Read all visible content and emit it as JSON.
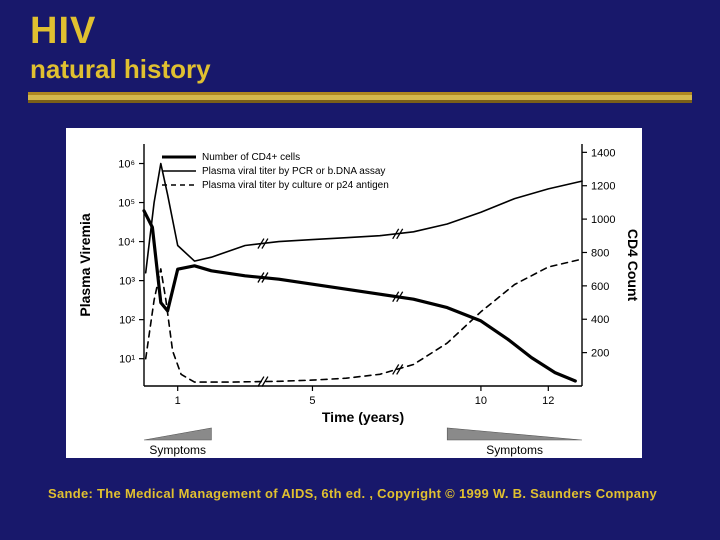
{
  "slide": {
    "background_color": "#18186b",
    "accent_color": "#e0c030",
    "title": "HIV",
    "subtitle": "natural history",
    "title_fontsize": 38,
    "subtitle_fontsize": 26,
    "underline_colors": [
      "#b08820",
      "#d4b84c",
      "#7a5f18"
    ],
    "citation": "Sande: The Medical Management of AIDS, 6th ed. , Copyright © 1999 W. B. Saunders Company",
    "citation_fontsize": 13
  },
  "chart": {
    "type": "line",
    "background_color": "#ffffff",
    "ink_color": "#000000",
    "font_family": "Arial",
    "axis_fontsize": 12,
    "tick_fontsize": 11,
    "legend_fontsize": 10,
    "legend": [
      {
        "label": "Number of CD4+ cells",
        "style": "solid-thick"
      },
      {
        "label": "Plasma viral titer by PCR or b.DNA assay",
        "style": "solid-thin"
      },
      {
        "label": "Plasma viral titer by culture or p24 antigen",
        "style": "dashed"
      }
    ],
    "x_axis": {
      "label": "Time (years)",
      "ticks": [
        1,
        5,
        10,
        12
      ],
      "range": [
        0,
        13
      ]
    },
    "y_left": {
      "label": "Plasma Viremia",
      "scale": "log",
      "ticks": [
        10,
        100,
        1000,
        10000,
        100000,
        1000000
      ],
      "tick_labels": [
        "10¹",
        "10²",
        "10³",
        "10⁴",
        "10⁵",
        "10⁶"
      ],
      "range_exp": [
        0.3,
        6.5
      ]
    },
    "y_right": {
      "label": "CD4 Count",
      "scale": "linear",
      "ticks": [
        200,
        400,
        600,
        800,
        1000,
        1200,
        1400
      ],
      "range": [
        0,
        1450
      ]
    },
    "break_marks_x": [
      3.5,
      7.5
    ],
    "series": {
      "cd4": {
        "axis": "right",
        "stroke": "#000000",
        "stroke_width": 3.2,
        "dash": "none",
        "points": [
          [
            0.0,
            1050
          ],
          [
            0.25,
            950
          ],
          [
            0.5,
            500
          ],
          [
            0.7,
            450
          ],
          [
            1.0,
            700
          ],
          [
            1.5,
            720
          ],
          [
            2.0,
            690
          ],
          [
            3.0,
            660
          ],
          [
            4.0,
            640
          ],
          [
            5.0,
            610
          ],
          [
            6.0,
            580
          ],
          [
            7.0,
            550
          ],
          [
            8.0,
            520
          ],
          [
            9.0,
            470
          ],
          [
            10.0,
            390
          ],
          [
            10.8,
            280
          ],
          [
            11.5,
            170
          ],
          [
            12.2,
            80
          ],
          [
            12.8,
            30
          ]
        ]
      },
      "pcr": {
        "axis": "left_log",
        "stroke": "#000000",
        "stroke_width": 1.6,
        "dash": "none",
        "points_exp": [
          [
            0.05,
            3.2
          ],
          [
            0.3,
            5.0
          ],
          [
            0.5,
            6.0
          ],
          [
            0.7,
            5.2
          ],
          [
            1.0,
            3.9
          ],
          [
            1.5,
            3.5
          ],
          [
            2.0,
            3.6
          ],
          [
            3.0,
            3.9
          ],
          [
            4.0,
            4.0
          ],
          [
            5.0,
            4.05
          ],
          [
            6.0,
            4.1
          ],
          [
            7.0,
            4.15
          ],
          [
            8.0,
            4.25
          ],
          [
            9.0,
            4.45
          ],
          [
            10.0,
            4.75
          ],
          [
            11.0,
            5.1
          ],
          [
            12.0,
            5.35
          ],
          [
            13.0,
            5.55
          ]
        ]
      },
      "culture": {
        "axis": "left_log",
        "stroke": "#000000",
        "stroke_width": 1.6,
        "dash": "6,5",
        "points_exp": [
          [
            0.05,
            1.0
          ],
          [
            0.3,
            2.5
          ],
          [
            0.5,
            3.3
          ],
          [
            0.65,
            2.5
          ],
          [
            0.85,
            1.2
          ],
          [
            1.1,
            0.6
          ],
          [
            1.5,
            0.4
          ],
          [
            2.5,
            0.4
          ],
          [
            4.0,
            0.42
          ],
          [
            5.0,
            0.45
          ],
          [
            6.0,
            0.5
          ],
          [
            7.0,
            0.6
          ],
          [
            8.0,
            0.85
          ],
          [
            9.0,
            1.4
          ],
          [
            10.0,
            2.2
          ],
          [
            11.0,
            2.9
          ],
          [
            12.0,
            3.35
          ],
          [
            13.0,
            3.55
          ]
        ]
      }
    },
    "symptom_bars": {
      "left": {
        "label": "Symptoms",
        "x_range": [
          0,
          2.0
        ],
        "direction": "ltr"
      },
      "right": {
        "label": "Symptoms",
        "x_range": [
          9.0,
          13.0
        ],
        "direction": "rtl"
      }
    }
  }
}
